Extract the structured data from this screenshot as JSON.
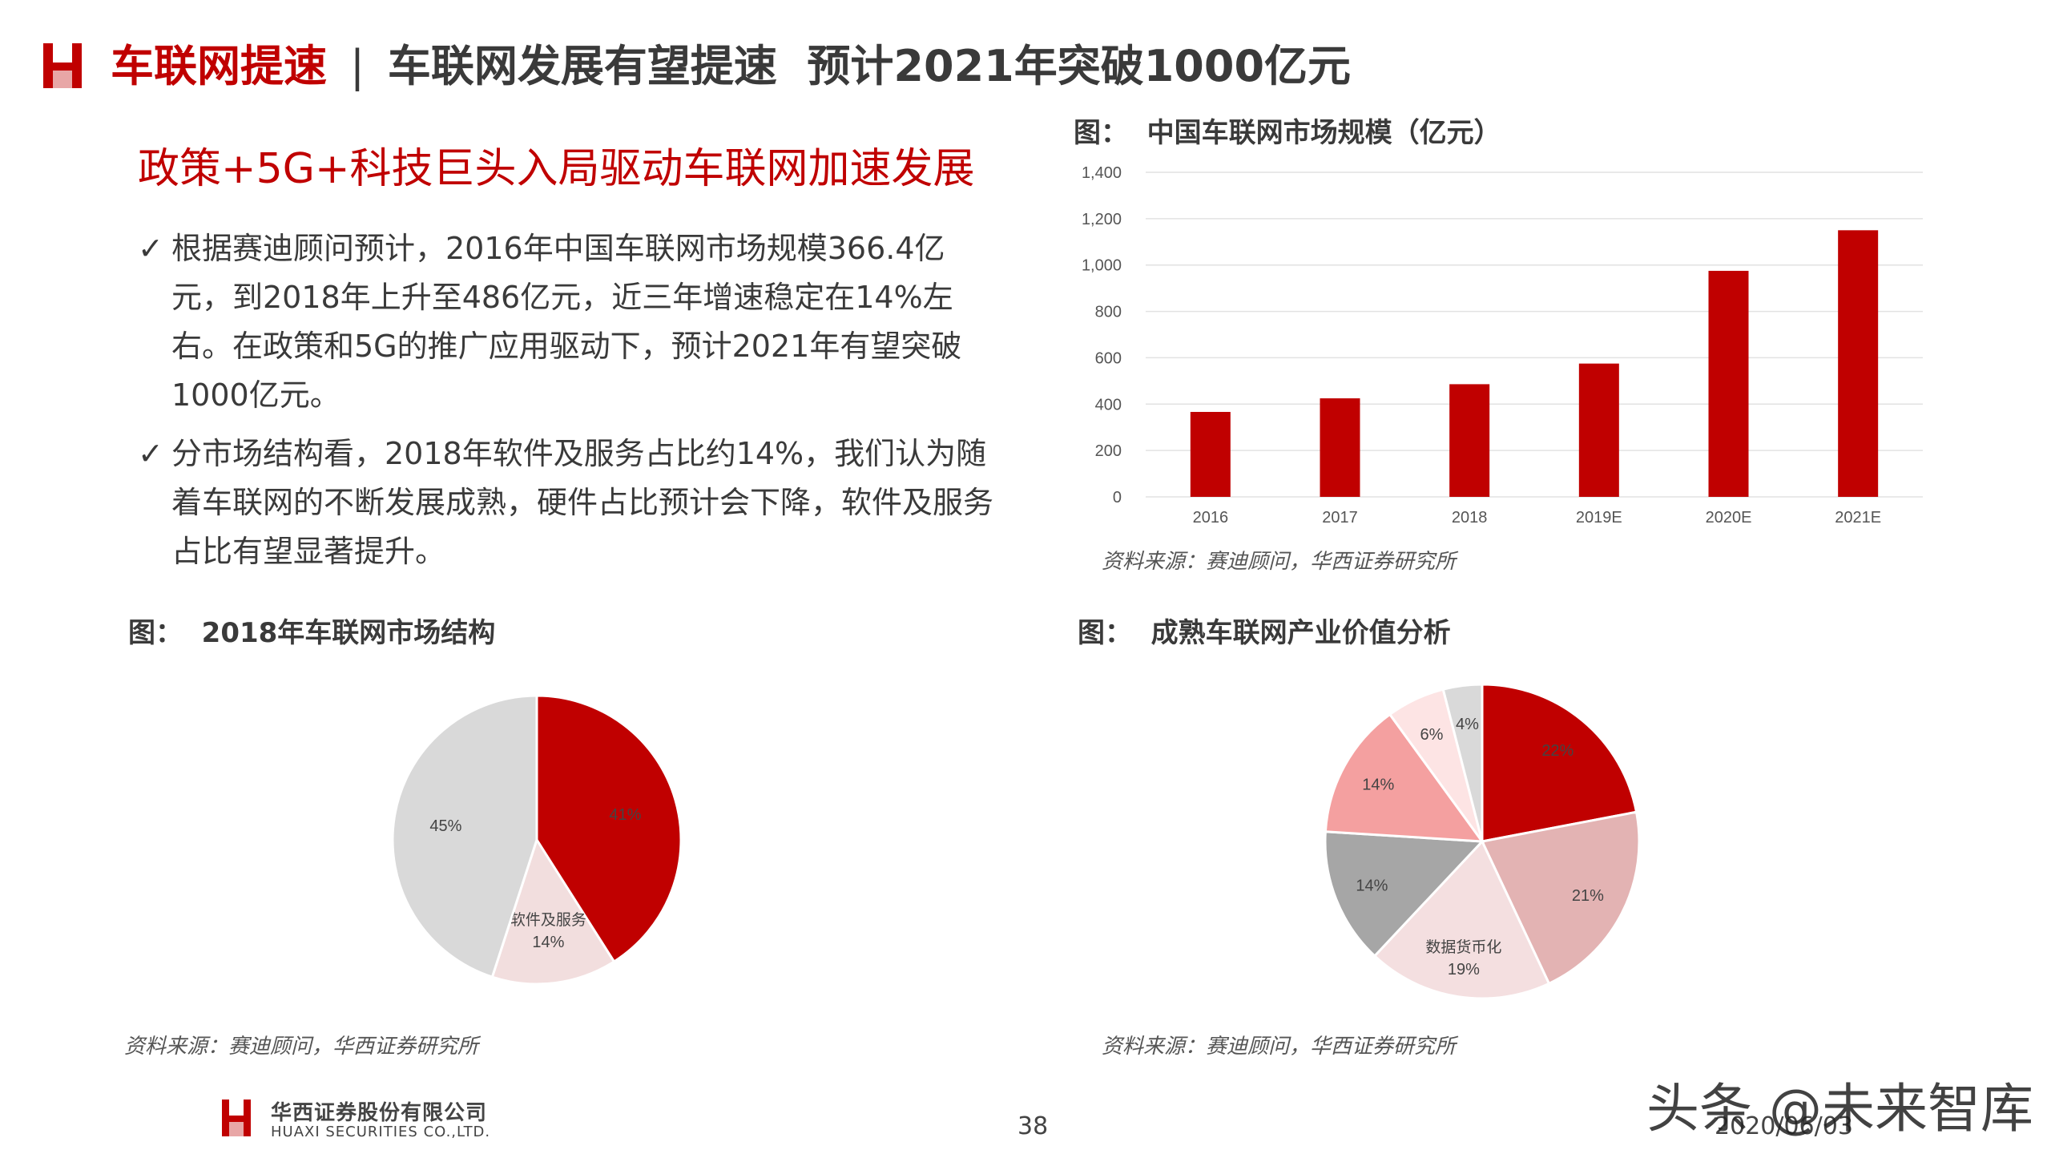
{
  "header": {
    "section": "车联网提速",
    "separator": "|",
    "title": "车联网发展有望提速  预计2021年突破1000亿元"
  },
  "subheading": "政策+5G+科技巨头入局驱动车联网加速发展",
  "bullets": [
    {
      "check": "✓",
      "text": "根据赛迪顾问预计，2016年中国车联网市场规模366.4亿元，到2018年上升至486亿元，近三年增速稳定在14%左右。在政策和5G的推广应用驱动下，预计2021年有望突破1000亿元。"
    },
    {
      "check": "✓",
      "text": "分市场结构看，2018年软件及服务占比约14%，我们认为随着车联网的不断发展成熟，硬件占比预计会下降，软件及服务占比有望显著提升。"
    }
  ],
  "figures": {
    "bar_title": "图：  中国车联网市场规模（亿元）",
    "pie1_title": "图：  2018年车联网市场结构",
    "pie2_title": "图：  成熟车联网产业价值分析"
  },
  "sources": {
    "bar": "资料来源：赛迪顾问，华西证券研究所",
    "pie1": "资料来源：赛迪顾问，华西证券研究所",
    "pie2": "资料来源：赛迪顾问，华西证券研究所"
  },
  "chart_data": [
    {
      "type": "bar",
      "categories": [
        "2016",
        "2017",
        "2018",
        "2019E",
        "2020E",
        "2021E"
      ],
      "values": [
        366.4,
        425,
        486,
        575,
        975,
        1150
      ],
      "ylim": [
        0,
        1400
      ],
      "yticks": [
        "0",
        "200",
        "400",
        "600",
        "800",
        "1,000",
        "1,200",
        "1,400"
      ],
      "grid": true,
      "color": "#c00000"
    },
    {
      "type": "pie",
      "slices": [
        {
          "label": "",
          "value": 41,
          "text": "41%",
          "color": "#c00000"
        },
        {
          "label": "软件及服务",
          "value": 14,
          "text": "14%",
          "color": "#f2dede"
        },
        {
          "label": "",
          "value": 45,
          "text": "45%",
          "color": "#d9d9d9"
        }
      ]
    },
    {
      "type": "pie",
      "slices": [
        {
          "label": "",
          "value": 22,
          "text": "22%",
          "color": "#c00000"
        },
        {
          "label": "",
          "value": 21,
          "text": "21%",
          "color": "#e3b3b3"
        },
        {
          "label": "数据货币化",
          "value": 19,
          "text": "19%",
          "color": "#f4dfe0"
        },
        {
          "label": "",
          "value": 14,
          "text": "14%",
          "color": "#a6a6a6"
        },
        {
          "label": "",
          "value": 14,
          "text": "14%",
          "color": "#f4a0a0"
        },
        {
          "label": "",
          "value": 6,
          "text": "6%",
          "color": "#fde4e4"
        },
        {
          "label": "",
          "value": 4,
          "text": "4%",
          "color": "#d9d9d9"
        }
      ]
    }
  ],
  "footer": {
    "company_cn": "华西证券股份有限公司",
    "company_en": "HUAXI SECURITIES CO.,LTD.",
    "page": "38",
    "date": "2020/06/03",
    "watermark": "头条 @未来智库"
  },
  "colors": {
    "brand_red": "#c00000",
    "text": "#3a3a3a"
  }
}
